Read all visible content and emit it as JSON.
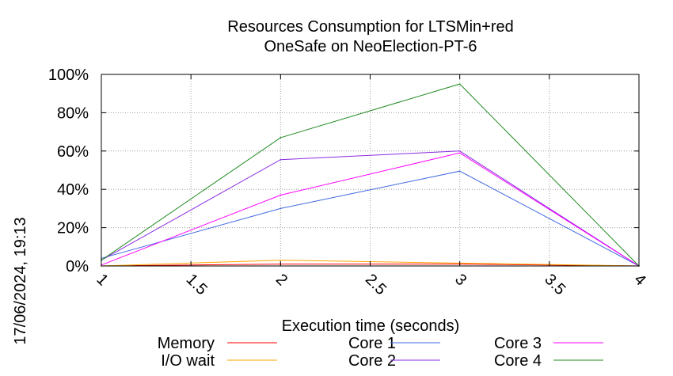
{
  "side_label": "17/06/2024, 19:13",
  "chart_data": {
    "type": "line",
    "title_lines": [
      "Resources Consumption for LTSMin+red",
      "OneSafe on NeoElection-PT-6"
    ],
    "xlabel": "Execution time (seconds)",
    "ylabel": "",
    "xlim": [
      1,
      4
    ],
    "ylim": [
      0,
      100
    ],
    "x_ticks": [
      1,
      1.5,
      2,
      2.5,
      3,
      3.5,
      4
    ],
    "x_tick_labels": [
      "1",
      "1.5",
      "2",
      "2.5",
      "3",
      "3.5",
      "4"
    ],
    "y_ticks": [
      0,
      20,
      40,
      60,
      80,
      100
    ],
    "y_tick_labels": [
      "0%",
      "20%",
      "40%",
      "60%",
      "80%",
      "100%"
    ],
    "grid": true,
    "legend_position": "bottom",
    "x": [
      1,
      2,
      3,
      4
    ],
    "series": [
      {
        "name": "Memory",
        "color": "#ff0000",
        "values": [
          0,
          1,
          1,
          0
        ]
      },
      {
        "name": "I/O wait",
        "color": "#ffa500",
        "values": [
          0,
          3,
          1.5,
          0
        ]
      },
      {
        "name": "Core 1",
        "color": "#4169e1",
        "values": [
          4,
          30,
          49.5,
          0
        ]
      },
      {
        "name": "Core 2",
        "color": "#8a2be2",
        "values": [
          3,
          55.5,
          60,
          0
        ]
      },
      {
        "name": "Core 3",
        "color": "#ff00ff",
        "values": [
          0.5,
          37,
          59,
          0
        ]
      },
      {
        "name": "Core 4",
        "color": "#228b22",
        "values": [
          3,
          67,
          95,
          0
        ]
      }
    ]
  }
}
